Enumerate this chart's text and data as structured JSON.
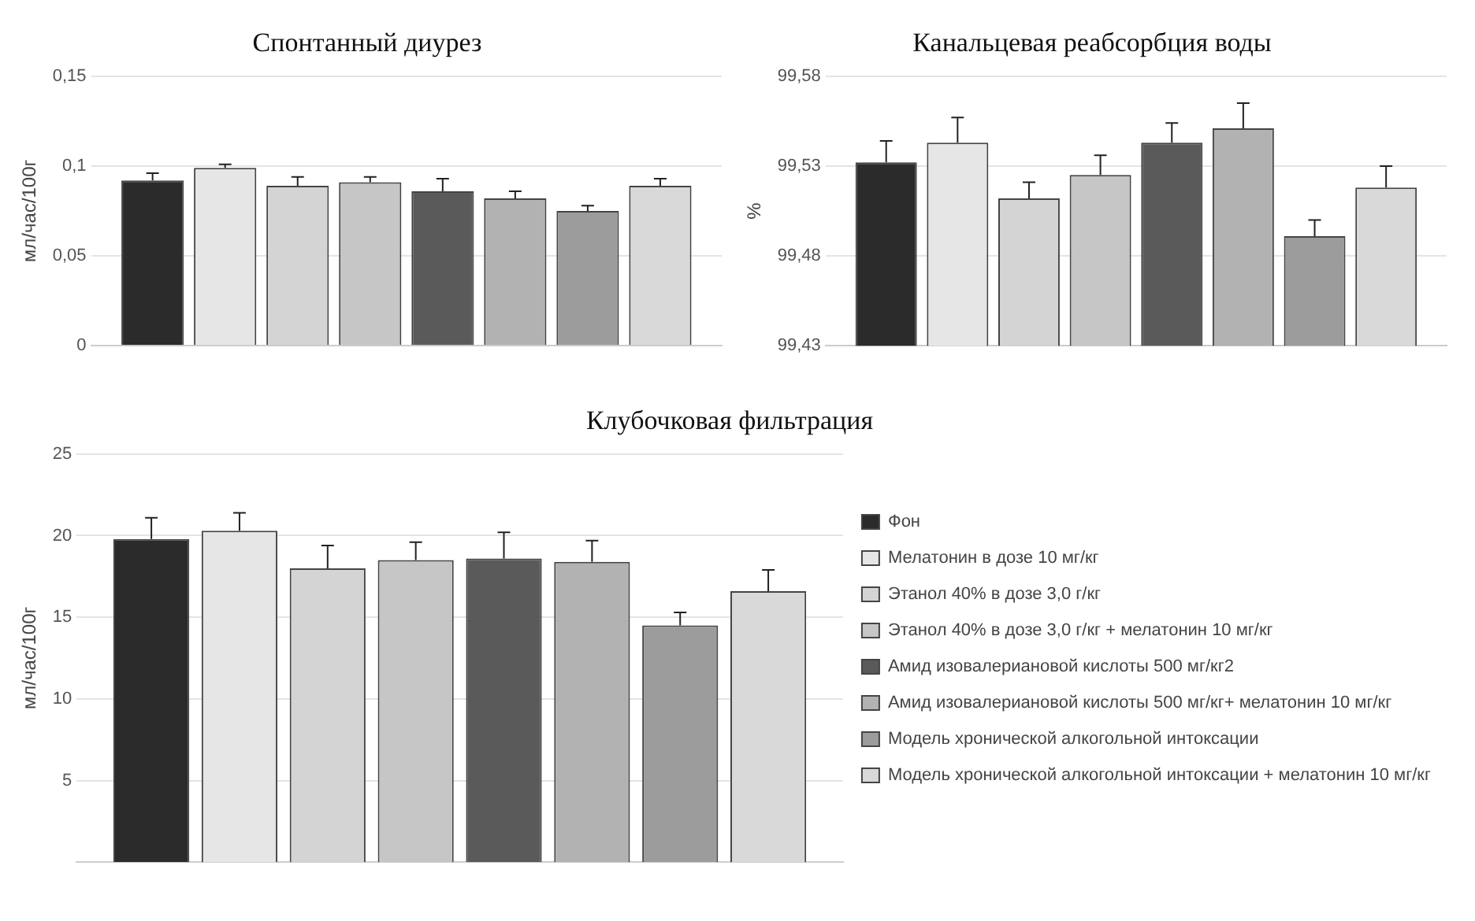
{
  "chart_data": [
    {
      "type": "bar",
      "title": "Спонтанный диурез",
      "ylabel": "мл/час/100г",
      "categories": [
        null
      ],
      "ylim": [
        0,
        0.15
      ],
      "yticks": [
        0,
        {
          "value": 0.05,
          "label": "0,05"
        },
        {
          "value": 0.1,
          "label": "0,1"
        },
        {
          "value": 0.15,
          "label": "0,15"
        }
      ],
      "grid": "y",
      "legend": false,
      "series": [
        {
          "color": "#2b2b2b",
          "values": [
            0.092
          ],
          "errors": [
            0.004
          ]
        },
        {
          "color": "#e6e6e6",
          "values": [
            0.099
          ],
          "errors": [
            0.002
          ]
        },
        {
          "color": "#d4d4d4",
          "values": [
            0.089
          ],
          "errors": [
            0.005
          ]
        },
        {
          "color": "#c6c6c6",
          "values": [
            0.091
          ],
          "errors": [
            0.003
          ]
        },
        {
          "color": "#5a5a5a",
          "values": [
            0.086
          ],
          "errors": [
            0.007
          ]
        },
        {
          "color": "#b2b2b2",
          "values": [
            0.082
          ],
          "errors": [
            0.004
          ]
        },
        {
          "color": "#9c9c9c",
          "values": [
            0.075
          ],
          "errors": [
            0.003
          ]
        },
        {
          "color": "#d9d9d9",
          "values": [
            0.089
          ],
          "errors": [
            0.004
          ]
        }
      ]
    },
    {
      "type": "bar",
      "title": "Канальцевая реабсорбция воды",
      "ylabel": "%",
      "categories": [
        null
      ],
      "ylim": [
        99.43,
        99.58
      ],
      "yticks": [
        {
          "value": 99.43,
          "label": "99,43"
        },
        {
          "value": 99.48,
          "label": "99,48"
        },
        {
          "value": 99.53,
          "label": "99,53"
        },
        {
          "value": 99.58,
          "label": "99,58"
        }
      ],
      "grid": "y",
      "legend": false,
      "series": [
        {
          "color": "#2b2b2b",
          "values": [
            99.532
          ],
          "errors": [
            0.012
          ]
        },
        {
          "color": "#e6e6e6",
          "values": [
            99.543
          ],
          "errors": [
            0.014
          ]
        },
        {
          "color": "#d4d4d4",
          "values": [
            99.512
          ],
          "errors": [
            0.009
          ]
        },
        {
          "color": "#c6c6c6",
          "values": [
            99.525
          ],
          "errors": [
            0.011
          ]
        },
        {
          "color": "#5a5a5a",
          "values": [
            99.543
          ],
          "errors": [
            0.011
          ]
        },
        {
          "color": "#b2b2b2",
          "values": [
            99.551
          ],
          "errors": [
            0.014
          ]
        },
        {
          "color": "#9c9c9c",
          "values": [
            99.491
          ],
          "errors": [
            0.009
          ]
        },
        {
          "color": "#d9d9d9",
          "values": [
            99.518
          ],
          "errors": [
            0.012
          ]
        }
      ]
    },
    {
      "type": "bar",
      "title": "Клубочковая фильтрация",
      "ylabel": "мл/час/100г",
      "categories": [
        null
      ],
      "ylim": [
        0,
        25
      ],
      "yticks": [
        5,
        10,
        15,
        20,
        25
      ],
      "grid": "y",
      "legend": "right",
      "series": [
        {
          "name": "Фон",
          "color": "#2b2b2b",
          "values": [
            19.8
          ],
          "errors": [
            1.3
          ]
        },
        {
          "name": "Мелатонин в дозе 10 мг/кг",
          "color": "#e6e6e6",
          "values": [
            20.3
          ],
          "errors": [
            1.1
          ]
        },
        {
          "name": "Этанол 40% в дозе 3,0 г/кг",
          "color": "#d4d4d4",
          "values": [
            18.0
          ],
          "errors": [
            1.4
          ]
        },
        {
          "name": "Этанол 40% в дозе 3,0 г/кг + мелатонин 10 мг/кг",
          "color": "#c6c6c6",
          "values": [
            18.5
          ],
          "errors": [
            1.1
          ]
        },
        {
          "name": "Амид изовалериановой кислоты 500 мг/кг2",
          "color": "#5a5a5a",
          "values": [
            18.6
          ],
          "errors": [
            1.6
          ]
        },
        {
          "name": "Амид изовалериановой кислоты 500 мг/кг+ мелатонин 10 мг/кг",
          "color": "#b2b2b2",
          "values": [
            18.4
          ],
          "errors": [
            1.3
          ]
        },
        {
          "name": "Модель хронической алкогольной интоксации",
          "color": "#9c9c9c",
          "values": [
            14.5
          ],
          "errors": [
            0.8
          ]
        },
        {
          "name": "Модель хронической алкогольной интоксации + мелатонин 10 мг/кг",
          "color": "#d9d9d9",
          "values": [
            16.6
          ],
          "errors": [
            1.3
          ]
        }
      ]
    }
  ]
}
